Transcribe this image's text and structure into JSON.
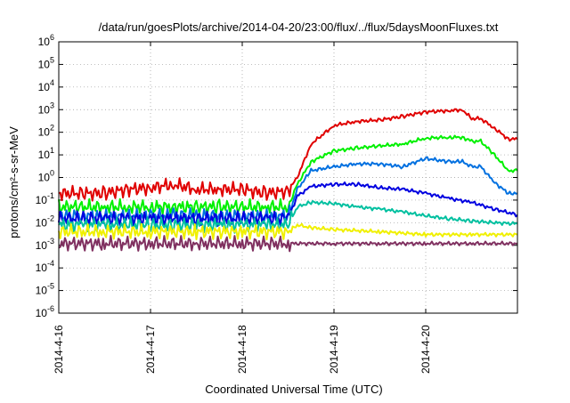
{
  "chart_data": {
    "type": "line",
    "title": "/data/run/goesPlots/archive/2014-04-20/23:00/flux/../flux/5daysMoonFluxes.txt",
    "xlabel": "Coordinated Universal Time (UTC)",
    "ylabel": "protons/cm²-s-sr-MeV",
    "yscale": "log",
    "ylim": [
      1e-06,
      1000000.0
    ],
    "xlim": [
      "2014-04-16",
      "2014-04-21"
    ],
    "grid": true,
    "legend": "none",
    "x_ticks": [
      "2014-4-16",
      "2014-4-17",
      "2014-4-18",
      "2014-4-19",
      "2014-4-20"
    ],
    "y_ticks": [
      {
        "base": "10",
        "exp": "6",
        "value": 1000000.0
      },
      {
        "base": "10",
        "exp": "5",
        "value": 100000.0
      },
      {
        "base": "10",
        "exp": "4",
        "value": 10000.0
      },
      {
        "base": "10",
        "exp": "3",
        "value": 1000.0
      },
      {
        "base": "10",
        "exp": "2",
        "value": 100.0
      },
      {
        "base": "10",
        "exp": "1",
        "value": 10.0
      },
      {
        "base": "10",
        "exp": "0",
        "value": 1
      },
      {
        "base": "10",
        "exp": "-1",
        "value": 0.1
      },
      {
        "base": "10",
        "exp": "-2",
        "value": 0.01
      },
      {
        "base": "10",
        "exp": "-3",
        "value": 0.001
      },
      {
        "base": "10",
        "exp": "-4",
        "value": 0.0001
      },
      {
        "base": "10",
        "exp": "-5",
        "value": 1e-05
      },
      {
        "base": "10",
        "exp": "-6",
        "value": 1e-06
      }
    ],
    "x_unit": "days since 2014-04-16 00:00 UTC",
    "series": [
      {
        "color": "#e00000",
        "x": [
          0,
          0.25,
          0.5,
          0.75,
          1,
          1.25,
          1.5,
          1.75,
          2,
          2.25,
          2.5,
          2.6,
          2.75,
          3,
          3.25,
          3.5,
          3.75,
          4,
          4.25,
          4.4,
          4.5,
          4.6,
          4.75,
          4.9,
          5
        ],
        "y": [
          0.2,
          0.2,
          0.2,
          0.3,
          0.35,
          0.5,
          0.3,
          0.3,
          0.3,
          0.2,
          0.25,
          1,
          30,
          200,
          300,
          350,
          500,
          800,
          900,
          1000,
          400,
          400,
          150,
          50,
          50
        ]
      },
      {
        "color": "#00f000",
        "x": [
          0,
          0.25,
          0.5,
          0.75,
          1,
          1.25,
          1.5,
          1.75,
          2,
          2.25,
          2.5,
          2.6,
          2.75,
          3,
          3.25,
          3.5,
          3.75,
          4,
          4.25,
          4.4,
          4.5,
          4.6,
          4.75,
          4.9,
          5
        ],
        "y": [
          0.05,
          0.05,
          0.05,
          0.05,
          0.05,
          0.05,
          0.05,
          0.05,
          0.05,
          0.05,
          0.05,
          0.5,
          5,
          15,
          20,
          25,
          30,
          55,
          60,
          60,
          40,
          40,
          10,
          2,
          2
        ]
      },
      {
        "color": "#0070e0",
        "x": [
          0,
          0.25,
          0.5,
          0.75,
          1,
          1.25,
          1.5,
          1.75,
          2,
          2.25,
          2.5,
          2.6,
          2.75,
          3,
          3.25,
          3.5,
          3.75,
          4,
          4.25,
          4.4,
          4.5,
          4.6,
          4.75,
          4.9,
          5
        ],
        "y": [
          0.02,
          0.02,
          0.02,
          0.02,
          0.02,
          0.02,
          0.02,
          0.02,
          0.02,
          0.02,
          0.02,
          0.3,
          2,
          3,
          4,
          4,
          3,
          7,
          5,
          5,
          3,
          3,
          0.6,
          0.2,
          0.2
        ]
      },
      {
        "color": "#0000e0",
        "x": [
          0,
          0.25,
          0.5,
          0.75,
          1,
          1.25,
          1.5,
          1.75,
          2,
          2.25,
          2.5,
          2.6,
          2.75,
          3,
          3.25,
          3.5,
          3.75,
          4,
          4.25,
          4.5,
          4.75,
          5
        ],
        "y": [
          0.015,
          0.015,
          0.015,
          0.015,
          0.015,
          0.015,
          0.015,
          0.015,
          0.015,
          0.015,
          0.015,
          0.15,
          0.4,
          0.5,
          0.5,
          0.35,
          0.3,
          0.2,
          0.12,
          0.08,
          0.04,
          0.022
        ]
      },
      {
        "color": "#00c0a0",
        "x": [
          0,
          0.25,
          0.5,
          0.75,
          1,
          1.25,
          1.5,
          1.75,
          2,
          2.25,
          2.5,
          2.6,
          2.75,
          3,
          3.25,
          3.5,
          3.75,
          4,
          4.25,
          4.5,
          4.75,
          5
        ],
        "y": [
          0.008,
          0.008,
          0.008,
          0.008,
          0.008,
          0.008,
          0.008,
          0.008,
          0.008,
          0.008,
          0.008,
          0.05,
          0.08,
          0.07,
          0.05,
          0.04,
          0.03,
          0.02,
          0.015,
          0.012,
          0.01,
          0.009
        ]
      },
      {
        "color": "#f0f000",
        "x": [
          0,
          0.5,
          1,
          1.5,
          2,
          2.5,
          2.6,
          2.75,
          3,
          3.5,
          4,
          4.5,
          5
        ],
        "y": [
          0.004,
          0.004,
          0.004,
          0.004,
          0.004,
          0.004,
          0.008,
          0.006,
          0.005,
          0.004,
          0.003,
          0.003,
          0.003
        ]
      },
      {
        "color": "#803060",
        "x": [
          0,
          0.5,
          1,
          1.5,
          2,
          2.5,
          3,
          3.5,
          4,
          4.5,
          5
        ],
        "y": [
          0.0012,
          0.0012,
          0.0012,
          0.0012,
          0.0012,
          0.0012,
          0.0012,
          0.0012,
          0.0012,
          0.0012,
          0.0012
        ]
      }
    ]
  }
}
